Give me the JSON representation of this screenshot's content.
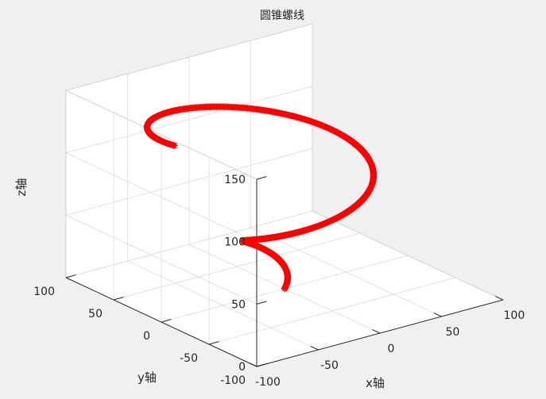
{
  "window": {
    "background": "#f0f0f0"
  },
  "chart_data": {
    "type": "line3d",
    "title": "圆锥螺线",
    "xlabel": "x轴",
    "ylabel": "y轴",
    "zlabel": "z轴",
    "xlim": [
      -100,
      100
    ],
    "ylim": [
      -100,
      100
    ],
    "zlim": [
      0,
      150
    ],
    "xticks": [
      -100,
      -50,
      0,
      50,
      100
    ],
    "yticks": [
      -100,
      -50,
      0,
      50,
      100
    ],
    "zticks": [
      0,
      50,
      100,
      150
    ],
    "tick_labels": {
      "x": [
        "-100",
        "-50",
        "0",
        "50",
        "100"
      ],
      "y": [
        "-100",
        "-50",
        "0",
        "50",
        "100"
      ],
      "z": [
        "0",
        "50",
        "100",
        "150"
      ]
    },
    "grid": true,
    "view": {
      "azimuth": -37.5,
      "elevation": 30
    },
    "series": [
      {
        "marker": "*",
        "color": "#ff0000",
        "parametric": {
          "x": "t*cos(t)",
          "y": "t*sin(t)",
          "z": "5*t",
          "t_range": [
            0,
            9.5
          ],
          "samples": 800
        }
      }
    ]
  }
}
